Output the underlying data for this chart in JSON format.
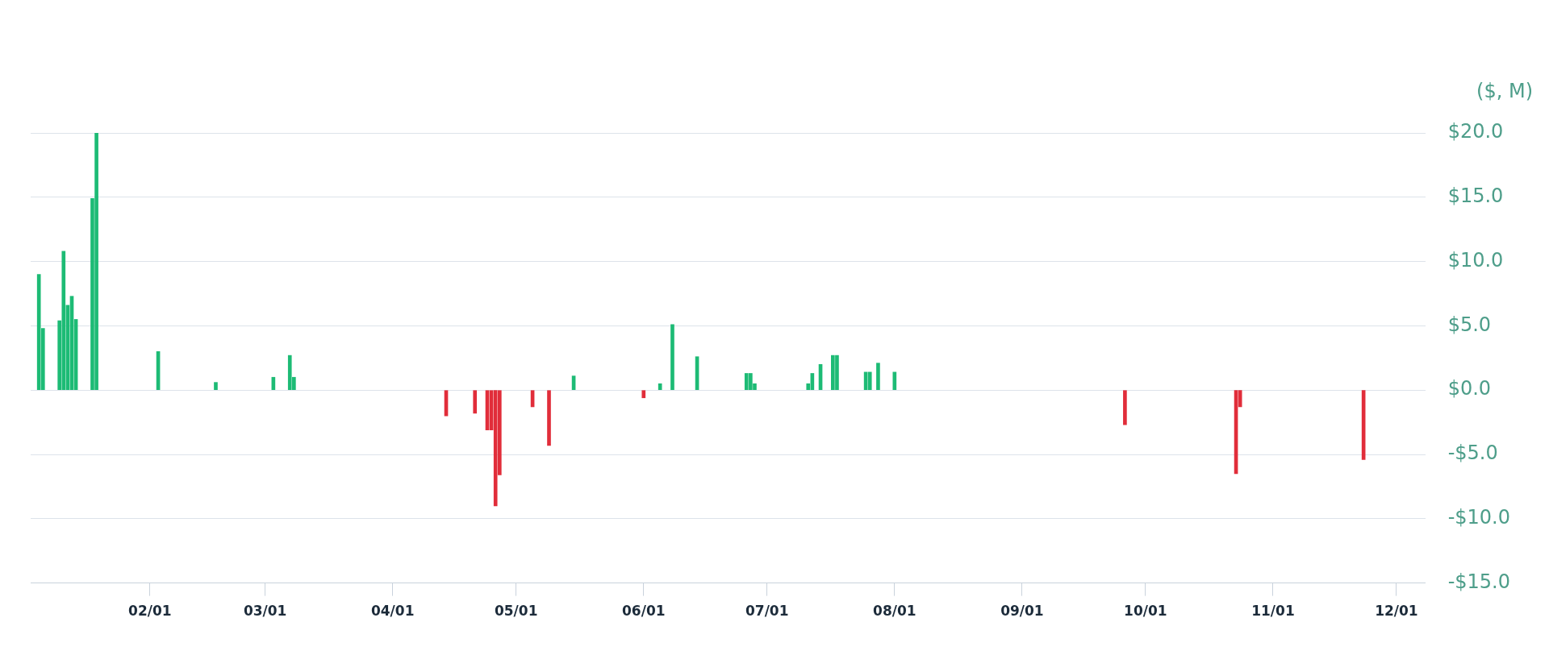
{
  "chart_data": {
    "type": "bar",
    "ylabel": "($, M)",
    "x": [
      "--01-05",
      "--01-06",
      "--01-10",
      "--01-11",
      "--01-12",
      "--01-13",
      "--01-14",
      "--01-18",
      "--01-19",
      "--02-03",
      "--02-17",
      "--03-03",
      "--03-07",
      "--03-08",
      "--04-14",
      "--04-21",
      "--04-24",
      "--04-25",
      "--04-26",
      "--04-27",
      "--05-05",
      "--05-09",
      "--05-15",
      "--06-01",
      "--06-05",
      "--06-08",
      "--06-14",
      "--06-26",
      "--06-27",
      "--06-28",
      "--07-11",
      "--07-12",
      "--07-14",
      "--07-17",
      "--07-18",
      "--07-25",
      "--07-26",
      "--07-28",
      "--08-01",
      "--09-26",
      "--10-23",
      "--10-24",
      "--11-23"
    ],
    "values": [
      9.0,
      4.8,
      5.4,
      10.8,
      6.6,
      7.3,
      5.5,
      14.9,
      20.0,
      3.0,
      0.6,
      1.0,
      2.7,
      1.0,
      -2.0,
      -1.8,
      -3.1,
      -3.1,
      -9.0,
      -6.6,
      -1.3,
      -4.3,
      1.1,
      -0.6,
      0.5,
      5.1,
      2.6,
      1.3,
      1.3,
      0.5,
      0.5,
      1.3,
      2.0,
      2.7,
      2.7,
      1.4,
      1.4,
      2.1,
      1.4,
      -2.7,
      -6.5,
      -1.3,
      -5.4
    ],
    "colors": [
      "#1dbb75",
      "#1dbb75",
      "#1dbb75",
      "#1dbb75",
      "#1dbb75",
      "#1dbb75",
      "#1dbb75",
      "#1dbb75",
      "#1dbb75",
      "#1dbb75",
      "#1dbb75",
      "#1dbb75",
      "#1dbb75",
      "#1dbb75",
      "#e12d3a",
      "#e12d3a",
      "#e12d3a",
      "#e12d3a",
      "#e12d3a",
      "#e12d3a",
      "#e12d3a",
      "#e12d3a",
      "#1dbb75",
      "#e12d3a",
      "#1dbb75",
      "#1dbb75",
      "#1dbb75",
      "#1dbb75",
      "#1dbb75",
      "#1dbb75",
      "#1dbb75",
      "#1dbb75",
      "#1dbb75",
      "#1dbb75",
      "#1dbb75",
      "#1dbb75",
      "#1dbb75",
      "#1dbb75",
      "#1dbb75",
      "#e12d3a",
      "#e12d3a",
      "#e12d3a",
      "#e12d3a"
    ],
    "xlim": [
      "--01-03",
      "--12-08"
    ],
    "xticks": [
      {
        "value": "--02-01",
        "label": "02/01"
      },
      {
        "value": "--03-01",
        "label": "03/01"
      },
      {
        "value": "--04-01",
        "label": "04/01"
      },
      {
        "value": "--05-01",
        "label": "05/01"
      },
      {
        "value": "--06-01",
        "label": "06/01"
      },
      {
        "value": "--07-01",
        "label": "07/01"
      },
      {
        "value": "--08-01",
        "label": "08/01"
      },
      {
        "value": "--09-01",
        "label": "09/01"
      },
      {
        "value": "--10-01",
        "label": "10/01"
      },
      {
        "value": "--11-01",
        "label": "11/01"
      },
      {
        "value": "--12-01",
        "label": "12/01"
      }
    ],
    "ylim": [
      -15,
      20
    ],
    "yticks": [
      {
        "value": -15,
        "label": "-$15.0"
      },
      {
        "value": -10,
        "label": "-$10.0"
      },
      {
        "value": -5,
        "label": "-$5.0"
      },
      {
        "value": 0,
        "label": "$0.0"
      },
      {
        "value": 5,
        "label": "$5.0"
      },
      {
        "value": 10,
        "label": "$10.0"
      },
      {
        "value": 15,
        "label": "$15.0"
      },
      {
        "value": 20,
        "label": "$20.0"
      }
    ],
    "grid": "y",
    "legend": false
  }
}
